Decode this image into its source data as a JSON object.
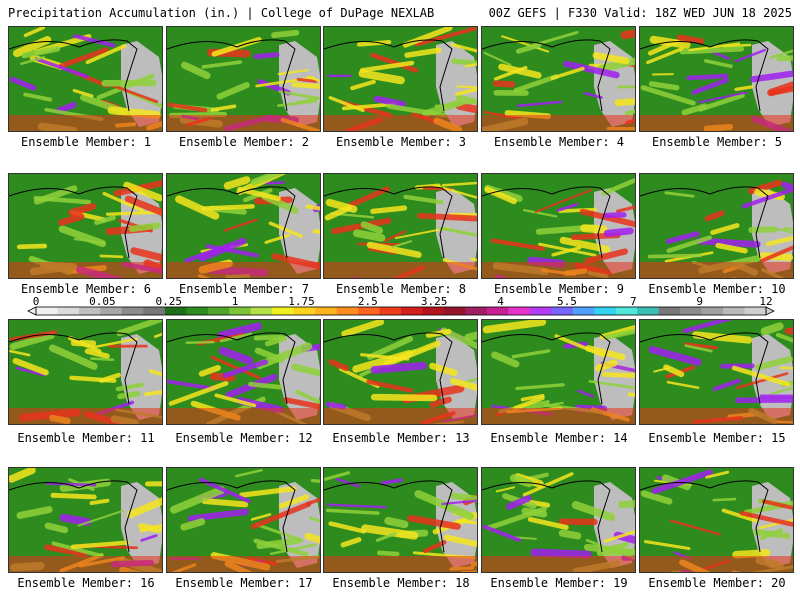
{
  "header": {
    "title_left": "Precipitation Accumulation (in.) | College of DuPage NEXLAB",
    "title_right": "00Z GEFS | F330 Valid: 18Z WED JUN 18 2025"
  },
  "colors": {
    "background": "#ffffff",
    "ocean_dry": "#2e8b1e",
    "light_precip": "#8fd13a",
    "moderate_precip": "#f5e61e",
    "heavy_precip": "#e8331c",
    "extreme_precip": "#a020f0",
    "land_dry": "#bdbdbd",
    "coastline": "#000000"
  },
  "colorbar": {
    "labels": [
      "0",
      "0.05",
      "0.25",
      "1",
      "1.75",
      "2.5",
      "3.25",
      "4",
      "5.5",
      "7",
      "9",
      "12"
    ],
    "colors": [
      "#f0f0f0",
      "#dcdcdc",
      "#c0c0c0",
      "#a6a6a6",
      "#8c8c8c",
      "#787878",
      "#1e6e1e",
      "#2e8b1e",
      "#4fa62a",
      "#7cc43a",
      "#b6e04a",
      "#f0f020",
      "#ffd21e",
      "#ffb41e",
      "#ff8c1e",
      "#ff6420",
      "#f03c1e",
      "#d21e1e",
      "#b4141e",
      "#96142e",
      "#a01e64",
      "#c81e96",
      "#e632c8",
      "#b43cf0",
      "#7864ff",
      "#50a0ff",
      "#32d2f0",
      "#50e6dc",
      "#3cbeb4",
      "#787878",
      "#8c8c8c",
      "#a0a0a0",
      "#bababa",
      "#cfcfcf"
    ]
  },
  "members": [
    {
      "label": "Ensemble Member: 1"
    },
    {
      "label": "Ensemble Member: 2"
    },
    {
      "label": "Ensemble Member: 3"
    },
    {
      "label": "Ensemble Member: 4"
    },
    {
      "label": "Ensemble Member: 5"
    },
    {
      "label": "Ensemble Member: 6"
    },
    {
      "label": "Ensemble Member: 7"
    },
    {
      "label": "Ensemble Member: 8"
    },
    {
      "label": "Ensemble Member: 9"
    },
    {
      "label": "Ensemble Member: 10"
    },
    {
      "label": "Ensemble Member: 11"
    },
    {
      "label": "Ensemble Member: 12"
    },
    {
      "label": "Ensemble Member: 13"
    },
    {
      "label": "Ensemble Member: 14"
    },
    {
      "label": "Ensemble Member: 15"
    },
    {
      "label": "Ensemble Member: 16"
    },
    {
      "label": "Ensemble Member: 17"
    },
    {
      "label": "Ensemble Member: 18"
    },
    {
      "label": "Ensemble Member: 19"
    },
    {
      "label": "Ensemble Member: 20"
    }
  ]
}
